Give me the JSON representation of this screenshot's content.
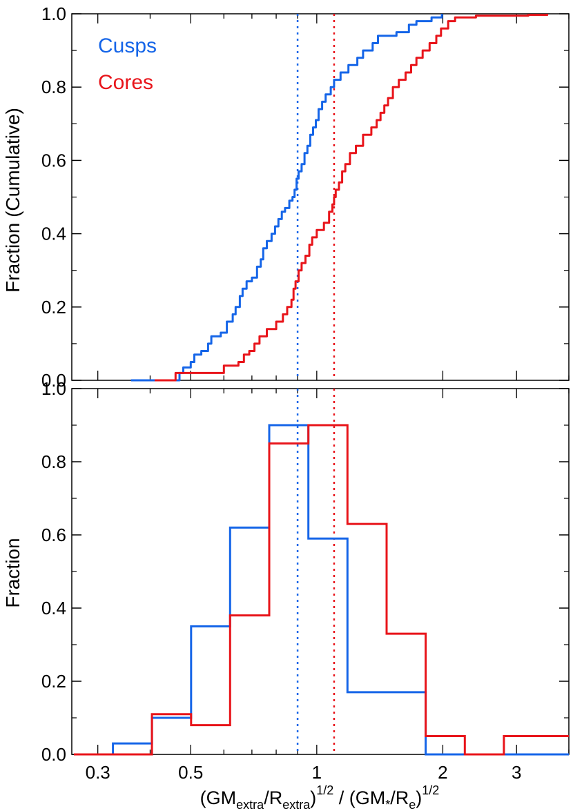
{
  "chart_data": [
    {
      "type": "line",
      "panel": "top",
      "ylabel": "Fraction (Cumulative)",
      "xscale": "log",
      "xlim": [
        0.26,
        4.0
      ],
      "ylim": [
        0.0,
        1.0
      ],
      "yticks": [
        0.0,
        0.2,
        0.4,
        0.6,
        0.8,
        1.0
      ],
      "ytick_labels": [
        "0.0",
        "0.2",
        "0.4",
        "0.6",
        "0.8",
        "1.0"
      ],
      "legend": [
        {
          "label": "Cusps",
          "color": "#1565e8"
        },
        {
          "label": "Cores",
          "color": "#e8141a"
        }
      ],
      "legend_position": "top-left",
      "series": [
        {
          "name": "Cusps",
          "color": "#1565e8",
          "points": [
            [
              0.36,
              0.0
            ],
            [
              0.47,
              0.02
            ],
            [
              0.48,
              0.035
            ],
            [
              0.5,
              0.05
            ],
            [
              0.51,
              0.07
            ],
            [
              0.53,
              0.08
            ],
            [
              0.55,
              0.1
            ],
            [
              0.56,
              0.12
            ],
            [
              0.59,
              0.13
            ],
            [
              0.61,
              0.16
            ],
            [
              0.63,
              0.18
            ],
            [
              0.64,
              0.2
            ],
            [
              0.655,
              0.23
            ],
            [
              0.665,
              0.25
            ],
            [
              0.68,
              0.27
            ],
            [
              0.7,
              0.28
            ],
            [
              0.72,
              0.31
            ],
            [
              0.735,
              0.33
            ],
            [
              0.745,
              0.36
            ],
            [
              0.76,
              0.38
            ],
            [
              0.78,
              0.4
            ],
            [
              0.795,
              0.42
            ],
            [
              0.81,
              0.44
            ],
            [
              0.825,
              0.46
            ],
            [
              0.84,
              0.47
            ],
            [
              0.86,
              0.49
            ],
            [
              0.875,
              0.5
            ],
            [
              0.885,
              0.52
            ],
            [
              0.895,
              0.55
            ],
            [
              0.905,
              0.57
            ],
            [
              0.92,
              0.59
            ],
            [
              0.935,
              0.62
            ],
            [
              0.95,
              0.64
            ],
            [
              0.965,
              0.67
            ],
            [
              0.98,
              0.69
            ],
            [
              0.995,
              0.71
            ],
            [
              1.01,
              0.74
            ],
            [
              1.03,
              0.76
            ],
            [
              1.05,
              0.78
            ],
            [
              1.08,
              0.8
            ],
            [
              1.1,
              0.82
            ],
            [
              1.14,
              0.84
            ],
            [
              1.19,
              0.86
            ],
            [
              1.25,
              0.88
            ],
            [
              1.29,
              0.9
            ],
            [
              1.36,
              0.92
            ],
            [
              1.4,
              0.94
            ],
            [
              1.55,
              0.95
            ],
            [
              1.66,
              0.97
            ],
            [
              1.73,
              0.98
            ],
            [
              1.88,
              0.99
            ],
            [
              1.99,
              1.0
            ]
          ]
        },
        {
          "name": "Cores",
          "color": "#e8141a",
          "points": [
            [
              0.41,
              0.0
            ],
            [
              0.46,
              0.02
            ],
            [
              0.6,
              0.04
            ],
            [
              0.65,
              0.05
            ],
            [
              0.67,
              0.07
            ],
            [
              0.69,
              0.08
            ],
            [
              0.71,
              0.1
            ],
            [
              0.73,
              0.12
            ],
            [
              0.76,
              0.14
            ],
            [
              0.8,
              0.16
            ],
            [
              0.83,
              0.18
            ],
            [
              0.85,
              0.2
            ],
            [
              0.87,
              0.22
            ],
            [
              0.88,
              0.25
            ],
            [
              0.89,
              0.27
            ],
            [
              0.905,
              0.3
            ],
            [
              0.92,
              0.32
            ],
            [
              0.94,
              0.34
            ],
            [
              0.96,
              0.37
            ],
            [
              0.975,
              0.39
            ],
            [
              1.0,
              0.41
            ],
            [
              1.04,
              0.43
            ],
            [
              1.07,
              0.46
            ],
            [
              1.09,
              0.48
            ],
            [
              1.1,
              0.5
            ],
            [
              1.11,
              0.52
            ],
            [
              1.13,
              0.54
            ],
            [
              1.15,
              0.57
            ],
            [
              1.17,
              0.59
            ],
            [
              1.2,
              0.62
            ],
            [
              1.24,
              0.64
            ],
            [
              1.29,
              0.67
            ],
            [
              1.35,
              0.69
            ],
            [
              1.39,
              0.71
            ],
            [
              1.42,
              0.73
            ],
            [
              1.45,
              0.75
            ],
            [
              1.48,
              0.77
            ],
            [
              1.52,
              0.8
            ],
            [
              1.57,
              0.82
            ],
            [
              1.63,
              0.84
            ],
            [
              1.68,
              0.86
            ],
            [
              1.73,
              0.88
            ],
            [
              1.79,
              0.9
            ],
            [
              1.86,
              0.92
            ],
            [
              1.93,
              0.94
            ],
            [
              1.98,
              0.96
            ],
            [
              2.06,
              0.98
            ],
            [
              2.14,
              0.99
            ],
            [
              2.4,
              0.995
            ],
            [
              3.2,
              0.997
            ],
            [
              3.55,
              1.0
            ]
          ]
        }
      ],
      "vlines": [
        {
          "x": 0.9,
          "color": "#1565e8",
          "style": "dotted"
        },
        {
          "x": 1.1,
          "color": "#e8141a",
          "style": "dotted"
        }
      ]
    },
    {
      "type": "step_histogram",
      "panel": "bottom",
      "xlabel": "(GMextra/Rextra)1/2 / (GM*/Re)1/2",
      "ylabel": "Fraction",
      "xscale": "log",
      "xlim": [
        0.26,
        4.0
      ],
      "ylim": [
        0.0,
        1.0
      ],
      "xticks": [
        0.3,
        0.5,
        1,
        2,
        3
      ],
      "xtick_labels": [
        "0.3",
        "0.5",
        "1",
        "2",
        "3"
      ],
      "yticks": [
        0.0,
        0.2,
        0.4,
        0.6,
        0.8,
        1.0
      ],
      "ytick_labels": [
        "0.0",
        "0.2",
        "0.4",
        "0.6",
        "0.8",
        "1.0"
      ],
      "bin_edges": [
        0.263,
        0.326,
        0.404,
        0.501,
        0.621,
        0.77,
        0.955,
        1.184,
        1.468,
        1.82,
        2.257,
        2.798,
        3.47,
        4.0
      ],
      "series": [
        {
          "name": "Cusps",
          "color": "#1565e8",
          "values": [
            0.0,
            0.03,
            0.1,
            0.35,
            0.62,
            0.9,
            0.59,
            0.17,
            0.17,
            0.0,
            0.0,
            0.0,
            0.0
          ]
        },
        {
          "name": "Cores",
          "color": "#e8141a",
          "values": [
            0.0,
            0.0,
            0.11,
            0.08,
            0.38,
            0.85,
            0.9,
            0.63,
            0.33,
            0.05,
            0.0,
            0.05,
            0.05
          ]
        }
      ],
      "vlines": [
        {
          "x": 0.9,
          "color": "#1565e8",
          "style": "dotted"
        },
        {
          "x": 1.1,
          "color": "#e8141a",
          "style": "dotted"
        }
      ]
    }
  ],
  "xlabel_parts": {
    "open1": "(GM",
    "sub1": "extra",
    "mid1": "/R",
    "sub2": "extra",
    "close1": ")",
    "sup1": "1/2",
    "slash": " / (GM",
    "sub3": "*",
    "mid2": "/R",
    "sub4": "e",
    "close2": ")",
    "sup2": "1/2"
  }
}
